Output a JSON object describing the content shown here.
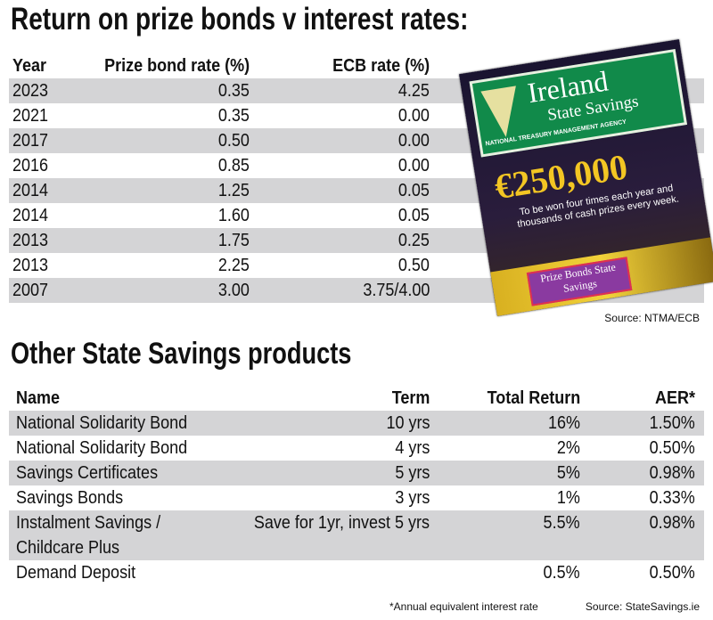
{
  "title1": "Return on prize bonds v interest rates:",
  "table1": {
    "headers": [
      "Year",
      "Prize bond rate (%)",
      "ECB rate (%)"
    ],
    "rows": [
      [
        "2023",
        "0.35",
        "4.25"
      ],
      [
        "2021",
        "0.35",
        "0.00"
      ],
      [
        "2017",
        "0.50",
        "0.00"
      ],
      [
        "2016",
        "0.85",
        "0.00"
      ],
      [
        "2014",
        "1.25",
        "0.05"
      ],
      [
        "2014",
        "1.60",
        "0.05"
      ],
      [
        "2013",
        "1.75",
        "0.25"
      ],
      [
        "2013",
        "2.25",
        "0.50"
      ],
      [
        "2007",
        "3.00",
        "3.75/4.00"
      ]
    ]
  },
  "source1": "Source: NTMA/ECB",
  "poster": {
    "brand": "Ireland",
    "sub": "State Savings",
    "agency": "NATIONAL TREASURY MANAGEMENT AGENCY",
    "amount": "€250,000",
    "blurb": "To be won four times each year and thousands of cash prizes every week.",
    "badge": "Prize Bonds State Savings"
  },
  "title2": "Other State Savings products",
  "table2": {
    "headers": [
      "Name",
      "Term",
      "Total Return",
      "AER*"
    ],
    "rows": [
      [
        "National Solidarity Bond",
        "10 yrs",
        "16%",
        "1.50%"
      ],
      [
        "National Solidarity Bond",
        "4 yrs",
        "2%",
        "0.50%"
      ],
      [
        "Savings Certificates",
        "5 yrs",
        "5%",
        "0.98%"
      ],
      [
        "Savings Bonds",
        "3 yrs",
        "1%",
        "0.33%"
      ],
      [
        "Instalment Savings / Childcare Plus",
        "Save for 1yr, invest  5 yrs",
        "5.5%",
        "0.98%"
      ],
      [
        "Demand Deposit",
        "",
        "0.5%",
        "0.50%"
      ]
    ]
  },
  "footnote": "*Annual equivalent interest rate",
  "source2": "Source: StateSavings.ie"
}
